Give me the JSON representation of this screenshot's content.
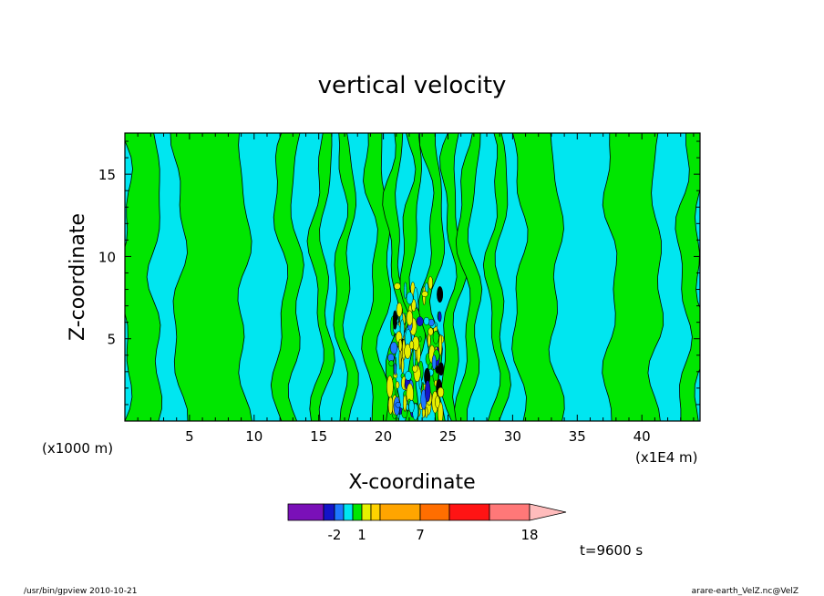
{
  "chart_data": {
    "type": "heatmap",
    "title": "vertical velocity",
    "xlabel": "X-coordinate",
    "ylabel": "Z-coordinate",
    "x_unit_left": "(x1000 m)",
    "x_unit_right": "(x1E4 m)",
    "xlim": [
      0,
      44.5
    ],
    "ylim": [
      0,
      17.5
    ],
    "x_ticks": [
      5,
      10,
      15,
      20,
      25,
      30,
      35,
      40
    ],
    "y_ticks": [
      5,
      10,
      15
    ],
    "colorbar": {
      "colors": [
        "#7a10b8",
        "#1414c8",
        "#1e78ff",
        "#00e6f0",
        "#00e600",
        "#e6f000",
        "#ffd200",
        "#ffa500",
        "#ff6e00",
        "#ff1414",
        "#ff7878",
        "#ffbcbc"
      ],
      "tick_labels": [
        "-2",
        "1",
        "7",
        "18"
      ]
    },
    "time_label": "t=9600 s",
    "green_bands": [
      [
        0.0,
        2.4
      ],
      [
        4.2,
        9.2
      ],
      [
        12.0,
        13.3
      ],
      [
        14.8,
        15.6
      ],
      [
        16.6,
        17.4
      ],
      [
        19.0,
        20.2
      ],
      [
        20.6,
        21.3
      ],
      [
        21.8,
        22.6
      ],
      [
        23.4,
        24.3
      ],
      [
        25.0,
        25.8
      ],
      [
        26.2,
        27.1
      ],
      [
        28.4,
        29.2
      ],
      [
        30.5,
        33.4
      ],
      [
        37.6,
        41.2
      ],
      [
        43.2,
        44.5
      ]
    ],
    "convective_core": {
      "x_range": [
        20.5,
        24.5
      ],
      "z_range": [
        0.5,
        8.5
      ]
    }
  },
  "footer": {
    "left": "/usr/bin/gpview   2010-10-21",
    "right": "arare-earth_VelZ.nc@VelZ"
  }
}
